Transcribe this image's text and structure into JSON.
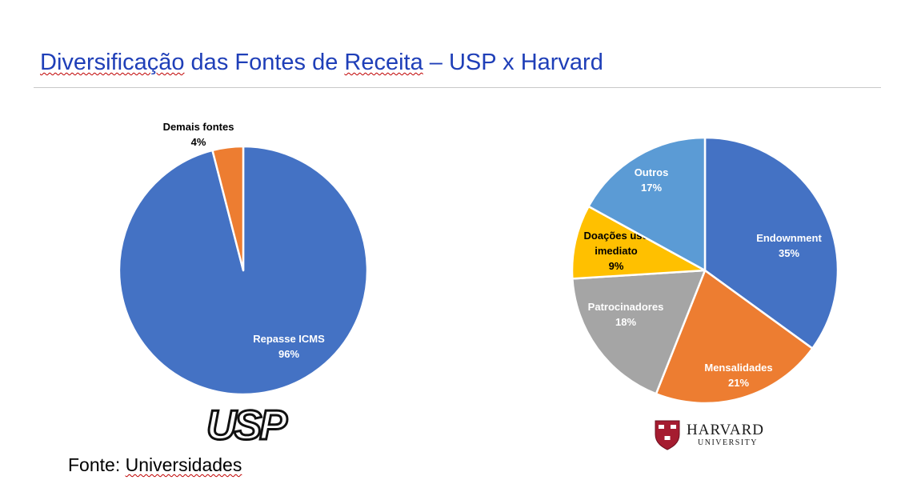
{
  "slide": {
    "title_part1": "Diversificação",
    "title_part2": " das Fontes de ",
    "title_part3": "Receita",
    "title_part4": " – USP x Harvard",
    "source_prefix": "Fonte: ",
    "source_word": "Universidades"
  },
  "logos": {
    "usp_text": "USP",
    "harvard_name": "HARVARD",
    "harvard_sub": "UNIVERSITY",
    "harvard_shield_text": "VE RI TAS"
  },
  "colors": {
    "blue": "#4472c4",
    "orange": "#ed7d31",
    "gray": "#a5a5a5",
    "gold": "#ffc000",
    "light_blue": "#5b9bd5",
    "title_blue": "#1f3fb8",
    "harvard_crimson": "#a51c30"
  },
  "chart_data": [
    {
      "type": "pie",
      "title": "",
      "slices": [
        {
          "label": "Repasse ICMS",
          "value": 96,
          "display": "96%",
          "color": "#4472c4",
          "label_color": "#ffffff"
        },
        {
          "label": "Demais fontes",
          "value": 4,
          "display": "4%",
          "color": "#ed7d31",
          "label_color": "#000000"
        }
      ]
    },
    {
      "type": "pie",
      "title": "",
      "slices": [
        {
          "label": "Endownment",
          "value": 35,
          "display": "35%",
          "color": "#4472c4",
          "label_color": "#ffffff"
        },
        {
          "label": "Mensalidades",
          "value": 21,
          "display": "21%",
          "color": "#ed7d31",
          "label_color": "#ffffff"
        },
        {
          "label": "Patrocinadores",
          "value": 18,
          "display": "18%",
          "color": "#a5a5a5",
          "label_color": "#ffffff"
        },
        {
          "label": "Doações uso imediato",
          "value": 9,
          "display": "9%",
          "color": "#ffc000",
          "label_color": "#000000"
        },
        {
          "label": "Outros",
          "value": 17,
          "display": "17%",
          "color": "#5b9bd5",
          "label_color": "#ffffff"
        }
      ]
    }
  ]
}
